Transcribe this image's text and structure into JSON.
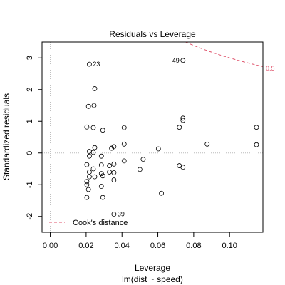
{
  "chart_data": {
    "type": "scatter",
    "title": "Residuals vs Leverage",
    "xlabel": "Leverage",
    "subtitle": "lm(dist ~ speed)",
    "ylabel": "Standardized residuals",
    "xlim": [
      -0.0046,
      0.1186
    ],
    "ylim": [
      -2.5,
      3.5
    ],
    "xticks": [
      0.0,
      0.02,
      0.04,
      0.06,
      0.08,
      0.1
    ],
    "xtick_labels": [
      "0.00",
      "0.02",
      "0.04",
      "0.06",
      "0.08",
      "0.10"
    ],
    "yticks": [
      -2,
      -1,
      0,
      1,
      2,
      3
    ],
    "ytick_labels": [
      "-2",
      "-1",
      "0",
      "1",
      "2",
      "3"
    ],
    "points": [
      {
        "x": 0.0204,
        "y": 0.82
      },
      {
        "x": 0.0204,
        "y": -0.9
      },
      {
        "x": 0.0204,
        "y": -1.0
      },
      {
        "x": 0.0204,
        "y": -0.37
      },
      {
        "x": 0.0204,
        "y": -1.4
      },
      {
        "x": 0.0213,
        "y": 1.47
      },
      {
        "x": 0.0213,
        "y": -1.15
      },
      {
        "x": 0.0218,
        "y": 2.8
      },
      {
        "x": 0.0218,
        "y": -0.6
      },
      {
        "x": 0.0218,
        "y": -0.75
      },
      {
        "x": 0.0218,
        "y": 0.05
      },
      {
        "x": 0.0218,
        "y": -0.1
      },
      {
        "x": 0.024,
        "y": 0.8
      },
      {
        "x": 0.024,
        "y": -0.5
      },
      {
        "x": 0.024,
        "y": 0.02
      },
      {
        "x": 0.0244,
        "y": 1.5
      },
      {
        "x": 0.0248,
        "y": 2.03
      },
      {
        "x": 0.0248,
        "y": 0.17
      },
      {
        "x": 0.0248,
        "y": -0.75
      },
      {
        "x": 0.0285,
        "y": -0.1
      },
      {
        "x": 0.0285,
        "y": -0.38
      },
      {
        "x": 0.0285,
        "y": -0.65
      },
      {
        "x": 0.0285,
        "y": -1.05
      },
      {
        "x": 0.0293,
        "y": 0.72
      },
      {
        "x": 0.0293,
        "y": -0.72
      },
      {
        "x": 0.0293,
        "y": -1.4
      },
      {
        "x": 0.033,
        "y": -0.4
      },
      {
        "x": 0.033,
        "y": -0.6
      },
      {
        "x": 0.0342,
        "y": 0.15
      },
      {
        "x": 0.0355,
        "y": 0.2
      },
      {
        "x": 0.0355,
        "y": -0.35
      },
      {
        "x": 0.0355,
        "y": -0.62
      },
      {
        "x": 0.0355,
        "y": -0.85
      },
      {
        "x": 0.0355,
        "y": -1.93
      },
      {
        "x": 0.0412,
        "y": 0.8
      },
      {
        "x": 0.0412,
        "y": 0.28
      },
      {
        "x": 0.0412,
        "y": -0.25
      },
      {
        "x": 0.05,
        "y": -0.52
      },
      {
        "x": 0.0518,
        "y": -0.2
      },
      {
        "x": 0.0603,
        "y": 0.13
      },
      {
        "x": 0.062,
        "y": -1.27
      },
      {
        "x": 0.072,
        "y": 0.81
      },
      {
        "x": 0.072,
        "y": -0.4
      },
      {
        "x": 0.074,
        "y": -0.45
      },
      {
        "x": 0.074,
        "y": 1.03
      },
      {
        "x": 0.074,
        "y": 1.1
      },
      {
        "x": 0.074,
        "y": 2.92
      },
      {
        "x": 0.0875,
        "y": 0.28
      },
      {
        "x": 0.115,
        "y": 0.81
      },
      {
        "x": 0.115,
        "y": 0.26
      }
    ],
    "point_labels": [
      {
        "text": "23",
        "x": 0.0218,
        "y": 2.8,
        "side": "right"
      },
      {
        "text": "49",
        "x": 0.074,
        "y": 2.92,
        "side": "left"
      },
      {
        "text": "39",
        "x": 0.0355,
        "y": -1.93,
        "side": "right"
      }
    ],
    "cooks_distance": {
      "level": 0.5,
      "label": "0.5",
      "color": "#DF536B",
      "p": 2,
      "curve_x_start": 0.0755
    },
    "smoother_color": "#DF536B",
    "reference_line_color": "#bbbbbb",
    "legend": {
      "position": "bottom-left",
      "label": "Cook's distance"
    }
  }
}
